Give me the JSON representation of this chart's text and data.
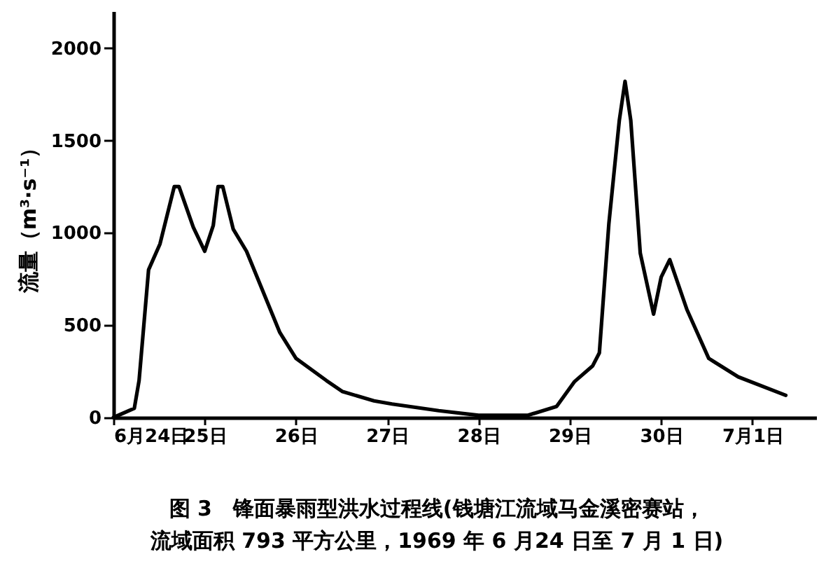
{
  "chart_data": {
    "type": "line",
    "title": "图 3　锋面暴雨型洪水过程线(钱塘江流域马金溪密赛站，",
    "subtitle": "流域面积 793 平方公里，1969 年 6 月24 日至 7 月 1 日)",
    "ylabel": "流量（m³·s⁻¹）",
    "x": [
      "1969-06-24T00:00",
      "1969-06-24T05:30",
      "1969-06-24T06:45",
      "1969-06-24T09:15",
      "1969-06-24T12:15",
      "1969-06-24T16:00",
      "1969-06-24T17:15",
      "1969-06-24T21:00",
      "1969-06-25T00:00",
      "1969-06-25T02:15",
      "1969-06-25T03:30",
      "1969-06-25T04:45",
      "1969-06-25T07:30",
      "1969-06-25T11:00",
      "1969-06-25T19:45",
      "1969-06-26T00:00",
      "1969-06-26T08:00",
      "1969-06-26T12:15",
      "1969-06-26T20:30",
      "1969-06-27T01:15",
      "1969-06-27T13:30",
      "1969-06-28T00:00",
      "1969-06-28T13:00",
      "1969-06-28T20:30",
      "1969-06-29T01:15",
      "1969-06-29T06:00",
      "1969-06-29T07:45",
      "1969-06-29T10:15",
      "1969-06-29T13:00",
      "1969-06-29T14:30",
      "1969-06-29T16:00",
      "1969-06-29T18:30",
      "1969-06-29T22:00",
      "1969-06-30T00:00",
      "1969-06-30T02:15",
      "1969-06-30T06:45",
      "1969-06-30T12:30",
      "1969-06-30T20:15",
      "1969-07-01T08:45"
    ],
    "series": [
      {
        "color": "#000000",
        "values": [
          0,
          50,
          200,
          800,
          940,
          1250,
          1250,
          1030,
          900,
          1040,
          1250,
          1250,
          1020,
          900,
          460,
          320,
          200,
          140,
          90,
          73,
          37,
          12,
          12,
          60,
          195,
          280,
          350,
          1050,
          1610,
          1820,
          1610,
          890,
          560,
          760,
          855,
          585,
          320,
          220,
          120
        ]
      }
    ],
    "xlim": [
      "1969-06-24T00:00",
      "1969-07-01T16:45"
    ],
    "xticks": [
      {
        "value": "1969-06-24",
        "label": "6月24日"
      },
      {
        "value": "1969-06-25",
        "label": "25日"
      },
      {
        "value": "1969-06-26",
        "label": "26日"
      },
      {
        "value": "1969-06-27",
        "label": "27日"
      },
      {
        "value": "1969-06-28",
        "label": "28日"
      },
      {
        "value": "1969-06-29",
        "label": "29日"
      },
      {
        "value": "1969-06-30",
        "label": "30日"
      },
      {
        "value": "1969-07-01",
        "label": "7月1日"
      }
    ],
    "ylim": [
      0,
      2200
    ],
    "yticks": [
      0,
      500,
      1000,
      1500,
      2000
    ],
    "grid": false,
    "marker": "none",
    "line_style": "solid"
  }
}
